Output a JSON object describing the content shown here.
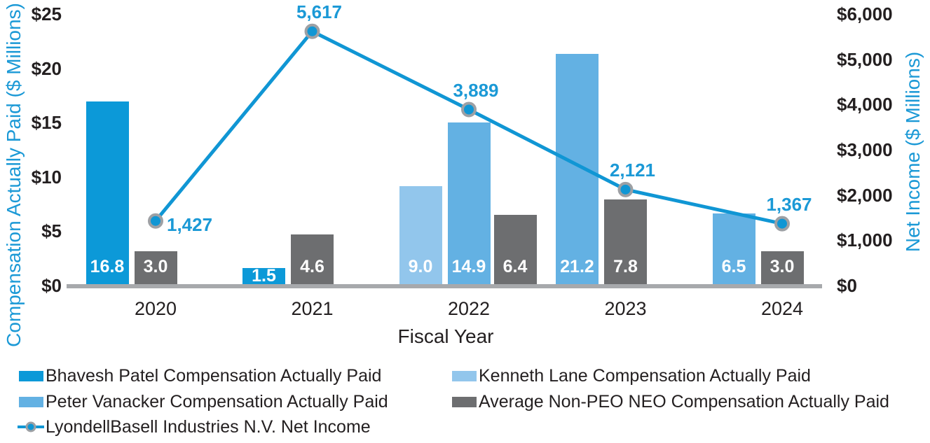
{
  "colors": {
    "accent_blue": "#1b99d6",
    "axis_line": "#a7a9ac",
    "dark_text": "#231f20",
    "bar_value_text": "#ffffff",
    "marker_ring": "#9da0a4"
  },
  "chart_data": {
    "type": "bar+line",
    "categories": [
      "2020",
      "2021",
      "2022",
      "2023",
      "2024"
    ],
    "series": [
      {
        "id": "bhavesh",
        "name": "Bhavesh Patel Compensation Actually Paid",
        "type": "bar",
        "color": "#0c99d8",
        "values": [
          16.8,
          1.5,
          null,
          null,
          null
        ]
      },
      {
        "id": "kenneth",
        "name": "Kenneth Lane Compensation Actually Paid",
        "type": "bar",
        "color": "#92c6ec",
        "values": [
          null,
          null,
          9.0,
          null,
          null
        ]
      },
      {
        "id": "peter",
        "name": "Peter Vanacker Compensation Actually Paid",
        "type": "bar",
        "color": "#63b1e3",
        "values": [
          null,
          null,
          14.9,
          21.2,
          6.5
        ]
      },
      {
        "id": "avg_neo",
        "name": "Average Non-PEO NEO Compensation Actually Paid",
        "type": "bar",
        "color": "#6d6e70",
        "values": [
          3.0,
          4.6,
          6.4,
          7.8,
          3.0
        ]
      },
      {
        "id": "net_income",
        "name": "LyondellBasell Industries N.V. Net Income",
        "type": "line",
        "color": "#1096d4",
        "values": [
          1427,
          5617,
          3889,
          2121,
          1367
        ],
        "point_labels": [
          "1,427",
          "5,617",
          "3,889",
          "2,121",
          "1,367"
        ]
      }
    ],
    "left_axis": {
      "title": "Compensation Actually Paid ($ Millions)",
      "tick_labels": [
        "$0",
        "$5",
        "$10",
        "$15",
        "$20",
        "$25"
      ],
      "tick_values": [
        0,
        5,
        10,
        15,
        20,
        25
      ],
      "max": 25
    },
    "right_axis": {
      "title": "Net Income ($ Millions)",
      "tick_labels": [
        "$0",
        "$1,000",
        "$2,000",
        "$3,000",
        "$4,000",
        "$5,000",
        "$6,000"
      ],
      "tick_values": [
        0,
        1000,
        2000,
        3000,
        4000,
        5000,
        6000
      ],
      "max": 6000
    },
    "x_axis": {
      "title": "Fiscal Year"
    },
    "grid": false,
    "legend_position": "bottom"
  },
  "legend": {
    "items": [
      {
        "series": "bhavesh",
        "col": 0,
        "row": 0,
        "marker": "swatch"
      },
      {
        "series": "kenneth",
        "col": 1,
        "row": 0,
        "marker": "swatch"
      },
      {
        "series": "peter",
        "col": 0,
        "row": 1,
        "marker": "swatch"
      },
      {
        "series": "avg_neo",
        "col": 1,
        "row": 1,
        "marker": "swatch"
      },
      {
        "series": "net_income",
        "col": 0,
        "row": 2,
        "marker": "line"
      }
    ]
  }
}
